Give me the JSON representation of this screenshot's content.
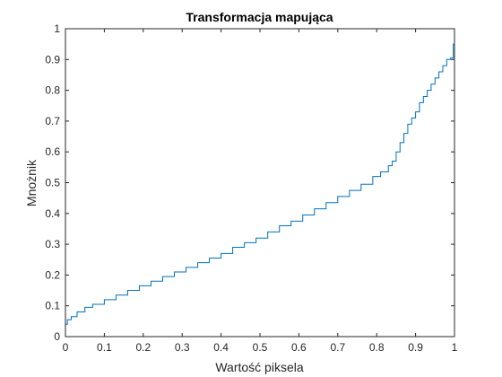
{
  "chart_data": {
    "type": "line",
    "title": "Transformacja mapująca",
    "xlabel": "Wartość piksela",
    "ylabel": "Mnożnik",
    "xlim": [
      0,
      1
    ],
    "ylim": [
      0,
      1
    ],
    "grid": false,
    "line_color": "#0072BD",
    "axis_color": "#262626",
    "x_ticks": [
      0,
      0.1,
      0.2,
      0.3,
      0.4,
      0.5,
      0.6,
      0.7,
      0.8,
      0.9,
      1
    ],
    "x_tick_labels": [
      "0",
      "0.1",
      "0.2",
      "0.3",
      "0.4",
      "0.5",
      "0.6",
      "0.7",
      "0.8",
      "0.9",
      "1"
    ],
    "y_ticks": [
      0,
      0.1,
      0.2,
      0.3,
      0.4,
      0.5,
      0.6,
      0.7,
      0.8,
      0.9,
      1
    ],
    "y_tick_labels": [
      "0",
      "0.1",
      "0.2",
      "0.3",
      "0.4",
      "0.5",
      "0.6",
      "0.7",
      "0.8",
      "0.9",
      "1"
    ],
    "series": [
      {
        "style": "stairs",
        "x": [
          0,
          0.005,
          0.015,
          0.03,
          0.05,
          0.07,
          0.1,
          0.13,
          0.16,
          0.19,
          0.22,
          0.25,
          0.28,
          0.31,
          0.34,
          0.37,
          0.4,
          0.43,
          0.46,
          0.49,
          0.52,
          0.55,
          0.58,
          0.61,
          0.64,
          0.67,
          0.7,
          0.73,
          0.76,
          0.79,
          0.81,
          0.83,
          0.84,
          0.85,
          0.86,
          0.87,
          0.88,
          0.89,
          0.9,
          0.91,
          0.92,
          0.93,
          0.94,
          0.95,
          0.96,
          0.97,
          0.98,
          0.99,
          0.997,
          1
        ],
        "y": [
          0.04,
          0.055,
          0.065,
          0.08,
          0.095,
          0.105,
          0.12,
          0.135,
          0.15,
          0.165,
          0.18,
          0.195,
          0.21,
          0.225,
          0.24,
          0.255,
          0.27,
          0.29,
          0.305,
          0.32,
          0.34,
          0.36,
          0.375,
          0.395,
          0.415,
          0.435,
          0.455,
          0.475,
          0.495,
          0.52,
          0.535,
          0.555,
          0.57,
          0.6,
          0.63,
          0.66,
          0.69,
          0.71,
          0.73,
          0.76,
          0.78,
          0.8,
          0.82,
          0.84,
          0.86,
          0.88,
          0.9,
          0.905,
          0.95,
          0.99
        ]
      }
    ]
  }
}
